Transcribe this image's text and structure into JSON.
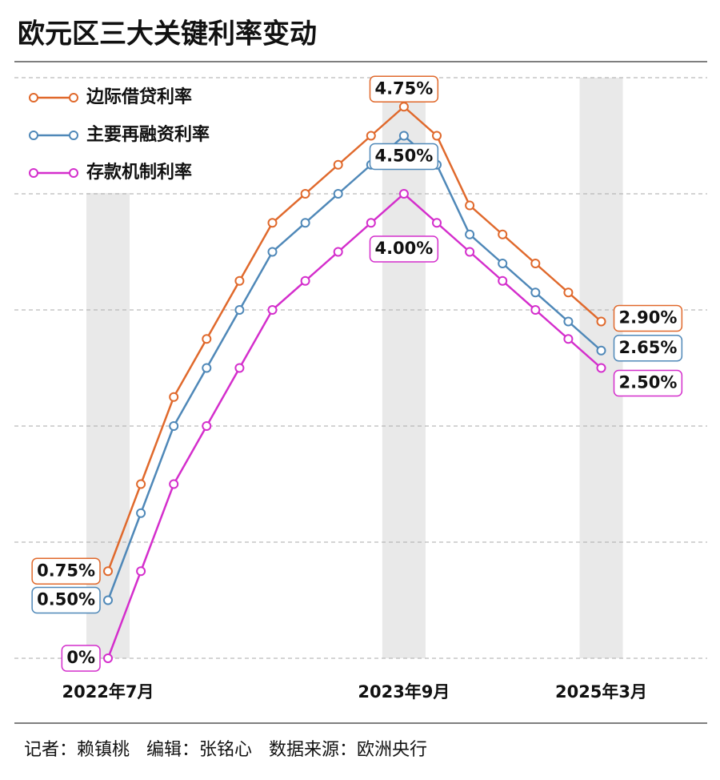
{
  "chart_data": {
    "type": "line",
    "title": "欧元区三大关键利率变动",
    "source": "记者：赖镇桃   编辑：张铭心   数据来源：欧洲央行",
    "categories": [
      "2022年7月",
      null,
      null,
      null,
      null,
      null,
      null,
      null,
      null,
      "2023年9月",
      null,
      null,
      null,
      null,
      null,
      "2025年3月"
    ],
    "ylim": [
      0,
      5
    ],
    "yticks": [
      0,
      1,
      2,
      3,
      4,
      5
    ],
    "grid": true,
    "legend": "top-left",
    "series": [
      {
        "name": "边际借贷利率",
        "color": "#e0692c",
        "values": [
          0.75,
          1.5,
          2.25,
          2.75,
          3.25,
          3.75,
          4.0,
          4.25,
          4.5,
          4.75,
          4.5,
          3.9,
          3.65,
          3.4,
          3.15,
          2.9
        ],
        "value_labels": [
          "0.75%",
          null,
          null,
          null,
          null,
          null,
          null,
          null,
          null,
          "4.75%",
          null,
          null,
          null,
          null,
          null,
          "2.90%"
        ]
      },
      {
        "name": "主要再融资利率",
        "color": "#4f88b8",
        "values": [
          0.5,
          1.25,
          2.0,
          2.5,
          3.0,
          3.5,
          3.75,
          4.0,
          4.25,
          4.5,
          4.25,
          3.65,
          3.4,
          3.15,
          2.9,
          2.65
        ],
        "value_labels": [
          "0.50%",
          null,
          null,
          null,
          null,
          null,
          null,
          null,
          null,
          "4.50%",
          null,
          null,
          null,
          null,
          null,
          "2.65%"
        ]
      },
      {
        "name": "存款机制利率",
        "color": "#d42ecc",
        "values": [
          0,
          0.75,
          1.5,
          2.0,
          2.5,
          3.0,
          3.25,
          3.5,
          3.75,
          4.0,
          3.75,
          3.5,
          3.25,
          3.0,
          2.75,
          2.5
        ],
        "value_labels": [
          "0%",
          null,
          null,
          null,
          null,
          null,
          null,
          null,
          null,
          "4.00%",
          null,
          null,
          null,
          null,
          null,
          "2.50%"
        ]
      }
    ]
  }
}
